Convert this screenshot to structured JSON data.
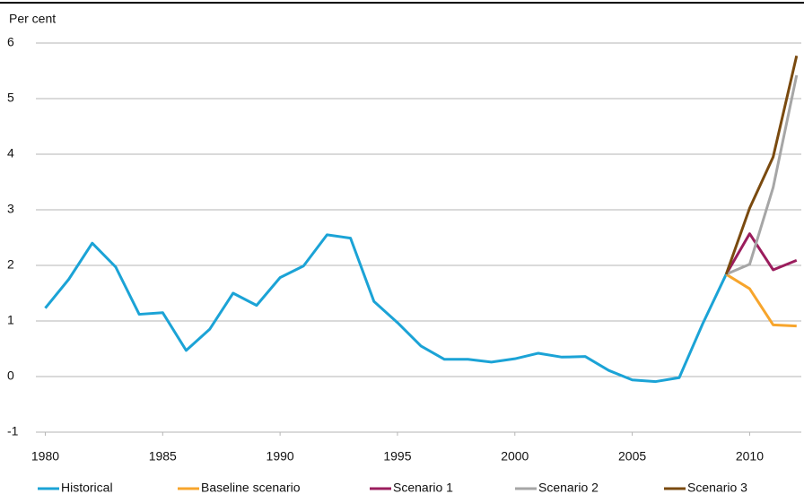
{
  "chart_data": {
    "type": "line",
    "ylabel": "Per cent",
    "x": [
      1980,
      1981,
      1982,
      1983,
      1984,
      1985,
      1986,
      1987,
      1988,
      1989,
      1990,
      1991,
      1992,
      1993,
      1994,
      1995,
      1996,
      1997,
      1998,
      1999,
      2000,
      2001,
      2002,
      2003,
      2004,
      2005,
      2006,
      2007,
      2008,
      2009,
      2010,
      2011,
      2012
    ],
    "series": [
      {
        "name": "Historical",
        "color": "#1ba3d6",
        "values": [
          1.23,
          1.75,
          2.4,
          1.97,
          1.12,
          1.15,
          0.47,
          0.85,
          1.5,
          1.28,
          1.78,
          1.99,
          2.55,
          2.49,
          1.35,
          0.97,
          0.55,
          0.31,
          0.31,
          0.26,
          0.32,
          0.42,
          0.35,
          0.36,
          0.11,
          -0.06,
          -0.09,
          -0.02,
          0.95,
          1.84,
          null,
          null,
          null
        ]
      },
      {
        "name": "Baseline scenario",
        "color": "#f7a52c",
        "values": [
          null,
          null,
          null,
          null,
          null,
          null,
          null,
          null,
          null,
          null,
          null,
          null,
          null,
          null,
          null,
          null,
          null,
          null,
          null,
          null,
          null,
          null,
          null,
          null,
          null,
          null,
          null,
          null,
          null,
          1.84,
          1.58,
          0.93,
          0.91
        ]
      },
      {
        "name": "Scenario 1",
        "color": "#9b1d5d",
        "values": [
          null,
          null,
          null,
          null,
          null,
          null,
          null,
          null,
          null,
          null,
          null,
          null,
          null,
          null,
          null,
          null,
          null,
          null,
          null,
          null,
          null,
          null,
          null,
          null,
          null,
          null,
          null,
          null,
          null,
          1.84,
          2.57,
          1.92,
          2.09
        ]
      },
      {
        "name": "Scenario 2",
        "color": "#a6a6a6",
        "values": [
          null,
          null,
          null,
          null,
          null,
          null,
          null,
          null,
          null,
          null,
          null,
          null,
          null,
          null,
          null,
          null,
          null,
          null,
          null,
          null,
          null,
          null,
          null,
          null,
          null,
          null,
          null,
          null,
          null,
          1.84,
          2.02,
          3.4,
          5.42
        ]
      },
      {
        "name": "Scenario 3",
        "color": "#7a4a0f",
        "values": [
          null,
          null,
          null,
          null,
          null,
          null,
          null,
          null,
          null,
          null,
          null,
          null,
          null,
          null,
          null,
          null,
          null,
          null,
          null,
          null,
          null,
          null,
          null,
          null,
          null,
          null,
          null,
          null,
          null,
          1.84,
          3.03,
          3.95,
          5.77
        ]
      }
    ],
    "xlim": [
      1979.6,
      2012.2
    ],
    "xticks": [
      1980,
      1985,
      1990,
      1995,
      2000,
      2005,
      2010
    ],
    "ylim": [
      -1,
      6
    ],
    "yticks": [
      -1,
      0,
      1,
      2,
      3,
      4,
      5,
      6
    ],
    "grid": true
  }
}
